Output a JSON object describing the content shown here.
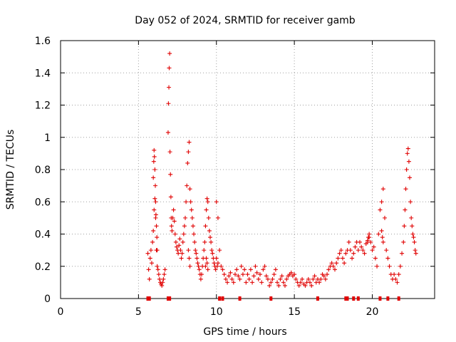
{
  "chart_data": {
    "type": "scatter",
    "title": "Day 052 of 2024, SRMTID for receiver gamb",
    "xlabel": "GPS time / hours",
    "ylabel": "SRMTID / TECUs",
    "xlim": [
      0,
      24
    ],
    "ylim": [
      0,
      1.6
    ],
    "xticks": [
      0,
      5,
      10,
      15,
      20
    ],
    "yticks": [
      0,
      0.2,
      0.4,
      0.6,
      0.8,
      1,
      1.2,
      1.4,
      1.6
    ],
    "grid": true,
    "marker": "+",
    "color": "#e00000",
    "series": [
      {
        "name": "SRMTID",
        "x": [
          5.6,
          5.65,
          5.7,
          5.75,
          5.8,
          5.85,
          5.9,
          5.95,
          6.0,
          6.05,
          6.1,
          6.15,
          6.2,
          6.25,
          6.3,
          6.35,
          6.4,
          6.45,
          6.5,
          6.55,
          6.6,
          6.65,
          6.7,
          5.95,
          5.98,
          6.0,
          6.02,
          6.05,
          6.08,
          6.1,
          6.12,
          6.15,
          6.18,
          6.2,
          6.9,
          6.92,
          6.95,
          6.97,
          7.0,
          7.02,
          7.05,
          7.08,
          7.1,
          7.12,
          7.15,
          7.2,
          7.25,
          7.3,
          7.35,
          7.4,
          7.45,
          7.5,
          7.55,
          7.6,
          7.65,
          7.7,
          7.75,
          7.8,
          7.85,
          7.9,
          7.95,
          8.0,
          8.05,
          8.1,
          8.15,
          8.2,
          8.25,
          8.3,
          8.35,
          8.4,
          8.45,
          8.5,
          8.55,
          8.6,
          8.65,
          8.7,
          8.75,
          8.8,
          8.85,
          8.9,
          8.95,
          9.0,
          9.05,
          9.1,
          9.15,
          9.2,
          9.25,
          9.3,
          9.35,
          9.4,
          9.45,
          9.5,
          9.55,
          9.6,
          9.65,
          9.7,
          9.75,
          9.8,
          9.85,
          9.9,
          9.95,
          10.0,
          10.1,
          10.2,
          10.3,
          10.4,
          10.5,
          10.6,
          10.7,
          10.8,
          10.9,
          11.0,
          11.1,
          11.2,
          11.3,
          11.4,
          11.5,
          11.6,
          11.7,
          11.8,
          11.9,
          12.0,
          12.1,
          12.2,
          12.3,
          12.4,
          12.5,
          12.6,
          12.7,
          12.8,
          12.9,
          13.0,
          13.1,
          13.2,
          13.3,
          13.4,
          13.5,
          13.6,
          13.7,
          13.8,
          13.9,
          14.0,
          14.1,
          14.2,
          14.3,
          14.4,
          14.5,
          14.6,
          14.7,
          14.8,
          14.9,
          15.0,
          15.1,
          15.2,
          15.3,
          15.4,
          15.5,
          15.6,
          15.7,
          15.8,
          15.9,
          16.0,
          16.1,
          16.2,
          16.3,
          16.4,
          16.5,
          16.6,
          16.7,
          16.8,
          16.9,
          17.0,
          17.1,
          17.2,
          17.3,
          17.4,
          17.5,
          17.6,
          17.7,
          17.8,
          17.9,
          18.0,
          18.1,
          18.2,
          18.3,
          18.4,
          18.5,
          18.6,
          18.7,
          18.8,
          18.9,
          19.0,
          19.1,
          19.2,
          19.3,
          19.4,
          19.5,
          19.6,
          19.7,
          19.8,
          19.9,
          20.0,
          20.1,
          20.2,
          20.3,
          20.4,
          20.5,
          20.6,
          20.7,
          20.8,
          20.9,
          21.0,
          21.1,
          21.2,
          21.3,
          21.4,
          21.5,
          21.6,
          21.7,
          21.8,
          21.9,
          22.0,
          22.05,
          22.1,
          22.15,
          22.2,
          22.25,
          22.3,
          22.35,
          22.4,
          22.45,
          22.5,
          22.55,
          22.6,
          22.65,
          22.7,
          22.75,
          22.8,
          9.3,
          9.35,
          9.4,
          9.45,
          10.0,
          10.05,
          10.1,
          8.2,
          8.25,
          8.3,
          19.7,
          19.75,
          19.8,
          20.6,
          20.65,
          20.7
        ],
        "y": [
          0.28,
          0.18,
          0.12,
          0.25,
          0.3,
          0.22,
          0.35,
          0.42,
          0.55,
          0.62,
          0.5,
          0.3,
          0.2,
          0.18,
          0.15,
          0.12,
          0.1,
          0.09,
          0.08,
          0.1,
          0.12,
          0.15,
          0.18,
          0.75,
          0.85,
          0.92,
          0.88,
          0.8,
          0.7,
          0.6,
          0.52,
          0.45,
          0.38,
          0.3,
          1.03,
          1.21,
          1.31,
          1.43,
          1.52,
          0.91,
          0.77,
          0.63,
          0.5,
          0.45,
          0.42,
          0.5,
          0.55,
          0.48,
          0.4,
          0.35,
          0.32,
          0.3,
          0.28,
          0.33,
          0.37,
          0.3,
          0.25,
          0.28,
          0.35,
          0.4,
          0.45,
          0.5,
          0.6,
          0.7,
          0.84,
          0.91,
          0.97,
          0.68,
          0.6,
          0.55,
          0.5,
          0.45,
          0.4,
          0.35,
          0.3,
          0.28,
          0.25,
          0.22,
          0.2,
          0.18,
          0.15,
          0.12,
          0.15,
          0.2,
          0.25,
          0.3,
          0.35,
          0.45,
          0.55,
          0.62,
          0.6,
          0.5,
          0.42,
          0.38,
          0.35,
          0.3,
          0.28,
          0.25,
          0.22,
          0.2,
          0.18,
          0.6,
          0.5,
          0.3,
          0.2,
          0.18,
          0.15,
          0.12,
          0.1,
          0.14,
          0.16,
          0.12,
          0.1,
          0.15,
          0.18,
          0.14,
          0.12,
          0.2,
          0.15,
          0.18,
          0.1,
          0.15,
          0.12,
          0.18,
          0.1,
          0.14,
          0.2,
          0.16,
          0.12,
          0.15,
          0.1,
          0.18,
          0.2,
          0.14,
          0.12,
          0.08,
          0.1,
          0.12,
          0.15,
          0.18,
          0.1,
          0.08,
          0.12,
          0.14,
          0.1,
          0.08,
          0.12,
          0.14,
          0.15,
          0.16,
          0.14,
          0.15,
          0.12,
          0.1,
          0.08,
          0.1,
          0.12,
          0.09,
          0.08,
          0.1,
          0.12,
          0.1,
          0.08,
          0.12,
          0.14,
          0.1,
          0.12,
          0.1,
          0.12,
          0.15,
          0.14,
          0.12,
          0.15,
          0.18,
          0.2,
          0.22,
          0.2,
          0.18,
          0.22,
          0.25,
          0.28,
          0.3,
          0.25,
          0.22,
          0.28,
          0.3,
          0.35,
          0.3,
          0.25,
          0.28,
          0.32,
          0.35,
          0.3,
          0.35,
          0.32,
          0.3,
          0.28,
          0.34,
          0.36,
          0.38,
          0.35,
          0.3,
          0.32,
          0.25,
          0.2,
          0.4,
          0.55,
          0.6,
          0.68,
          0.5,
          0.3,
          0.25,
          0.2,
          0.15,
          0.12,
          0.15,
          0.12,
          0.1,
          0.15,
          0.2,
          0.28,
          0.35,
          0.45,
          0.55,
          0.68,
          0.8,
          0.9,
          0.93,
          0.85,
          0.75,
          0.6,
          0.5,
          0.45,
          0.4,
          0.38,
          0.35,
          0.3,
          0.28,
          0.2,
          0.25,
          0.22,
          0.18,
          0.25,
          0.2,
          0.22,
          0.3,
          0.25,
          0.2,
          0.35,
          0.38,
          0.4,
          0.42,
          0.38,
          0.35
        ],
        "markers_on_axis": [
          5.6,
          5.7,
          6.9,
          7.0,
          10.2,
          10.4,
          11.5,
          13.5,
          16.5,
          18.3,
          18.4,
          18.8,
          19.1,
          20.5,
          21.0,
          21.7
        ]
      }
    ]
  }
}
